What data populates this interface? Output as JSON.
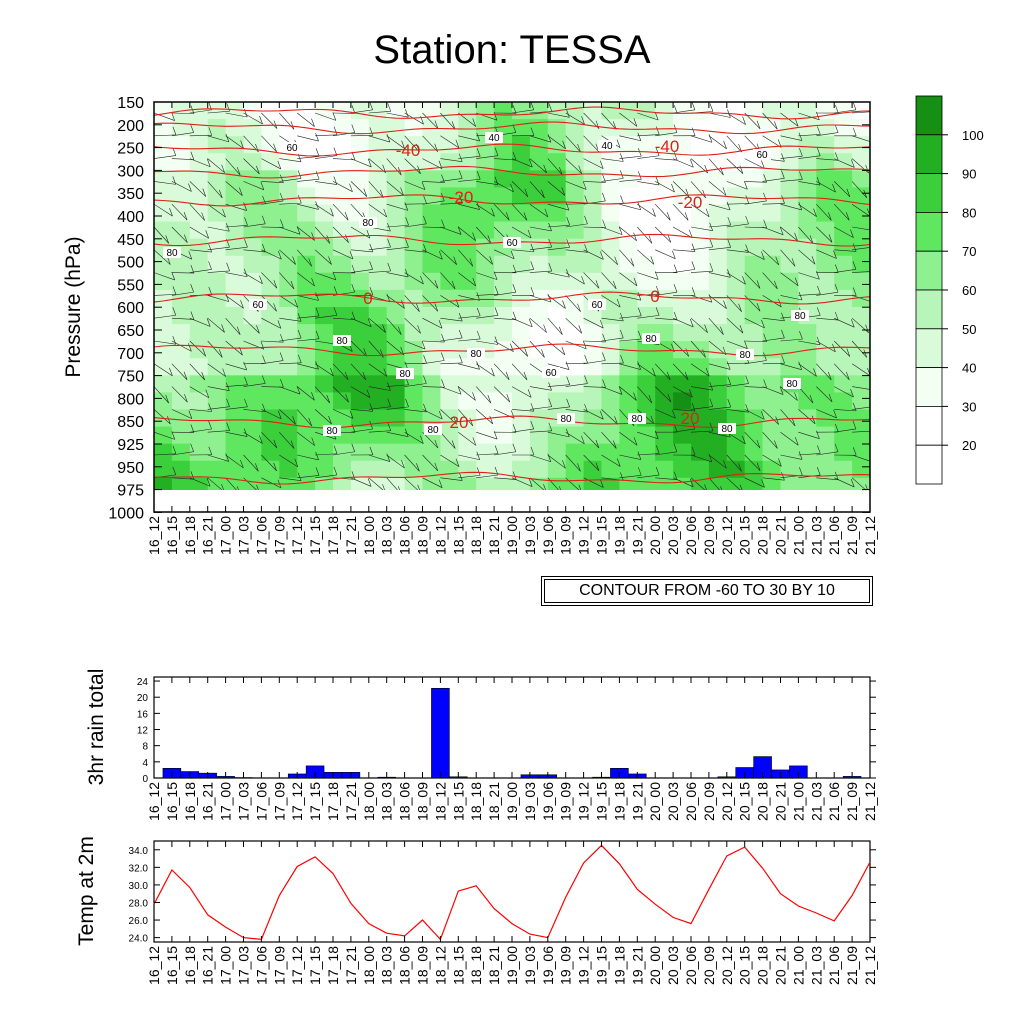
{
  "title": "Station: TESSA",
  "contour_note": "CONTOUR FROM -60 TO 30 BY 10",
  "time_labels": [
    "16_12",
    "16_15",
    "16_18",
    "16_21",
    "17_00",
    "17_03",
    "17_06",
    "17_09",
    "17_12",
    "17_15",
    "17_18",
    "17_21",
    "18_00",
    "18_03",
    "18_06",
    "18_09",
    "18_12",
    "18_15",
    "18_18",
    "18_21",
    "19_00",
    "19_03",
    "19_06",
    "19_09",
    "19_12",
    "19_15",
    "19_18",
    "19_21",
    "20_00",
    "20_03",
    "20_06",
    "20_09",
    "20_12",
    "20_15",
    "20_18",
    "20_21",
    "21_00",
    "21_03",
    "21_06",
    "21_09",
    "21_12"
  ],
  "chart_data": [
    {
      "type": "heatmap",
      "name": "relative-humidity-cross-section",
      "ylabel": "Pressure (hPa)",
      "y_ticks": [
        "150",
        "200",
        "250",
        "300",
        "350",
        "400",
        "450",
        "500",
        "550",
        "600",
        "650",
        "700",
        "750",
        "800",
        "850",
        "925",
        "950",
        "975",
        "1000"
      ],
      "colorbar_labels": [
        "20",
        "30",
        "40",
        "50",
        "60",
        "70",
        "80",
        "90",
        "100"
      ],
      "colorbar_colors": [
        "#ffffff",
        "#ffffff",
        "#f2fff2",
        "#d9fbd9",
        "#b8f5b8",
        "#8ef08e",
        "#5fe85f",
        "#3ccf3c",
        "#22b022",
        "#159015"
      ],
      "temperature_contours": [
        "-40",
        "-40",
        "-20",
        "-20",
        "0",
        "0",
        "20",
        "20"
      ],
      "humidity_contour_labels": [
        "60",
        "40",
        "40",
        "60",
        "60",
        "60",
        "60",
        "80",
        "80",
        "80",
        "80",
        "80",
        "60",
        "80",
        "80",
        "80",
        "80",
        "80",
        "80",
        "80",
        "80",
        "80"
      ]
    },
    {
      "type": "bar",
      "name": "rain",
      "ylabel": "3hr rain total",
      "y_ticks": [
        "24",
        "20",
        "16",
        "12",
        "8",
        "4",
        "0"
      ],
      "ylim": [
        0,
        25
      ],
      "values": [
        0,
        2.4,
        1.6,
        1.2,
        0.4,
        0.1,
        0,
        0,
        1.0,
        3.0,
        1.4,
        1.4,
        0,
        0.2,
        0,
        0,
        22.2,
        0.3,
        0,
        0,
        0,
        0.8,
        0.8,
        0,
        0,
        0.2,
        2.4,
        1.0,
        0,
        0,
        0,
        0,
        0.3,
        2.6,
        5.3,
        2.0,
        3.0,
        0,
        0,
        0.4,
        0
      ]
    },
    {
      "type": "line",
      "name": "temperature",
      "ylabel": "Temp at 2m",
      "y_ticks": [
        "34.0",
        "32.0",
        "30.0",
        "28.0",
        "26.0",
        "24.0"
      ],
      "ylim": [
        23.5,
        35.0
      ],
      "values": [
        27.8,
        31.7,
        29.7,
        26.6,
        25.2,
        24.0,
        23.8,
        28.8,
        32.1,
        33.2,
        31.3,
        27.9,
        25.6,
        24.5,
        24.2,
        26.0,
        23.8,
        29.3,
        29.9,
        27.3,
        25.6,
        24.4,
        24.0,
        28.6,
        32.5,
        34.5,
        32.4,
        29.5,
        27.8,
        26.3,
        25.6,
        29.5,
        33.3,
        34.3,
        31.9,
        29.0,
        27.6,
        26.8,
        25.9,
        28.8,
        32.6
      ],
      "color": "#ff0000"
    }
  ]
}
